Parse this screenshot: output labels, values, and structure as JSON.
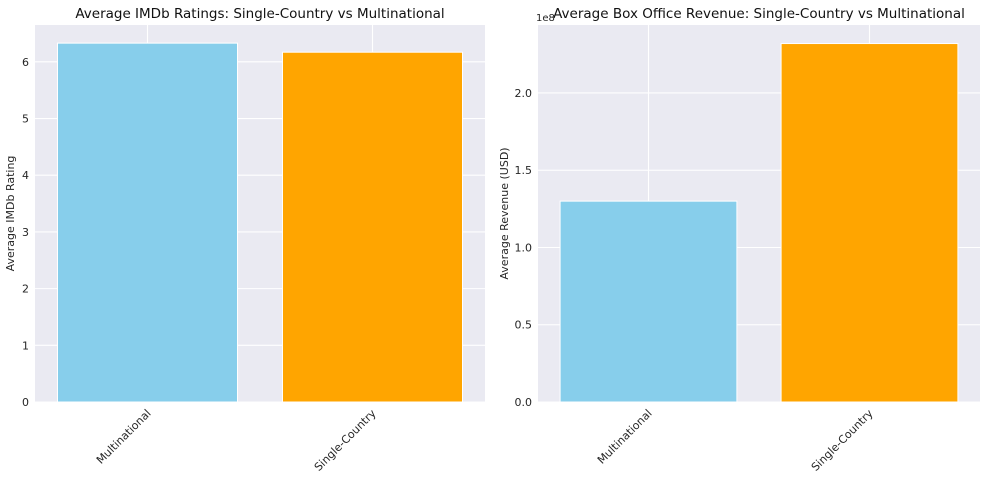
{
  "chart_data": [
    {
      "type": "bar",
      "title": "Average IMDb Ratings: Single-Country vs Multinational",
      "xlabel": "",
      "ylabel": "Average IMDb Rating",
      "categories": [
        "Multinational",
        "Single-Country"
      ],
      "values": [
        6.33,
        6.17
      ],
      "colors": [
        "#87ceeb",
        "#ffa500"
      ],
      "ylim": [
        0,
        6.65
      ],
      "yticks": [
        0,
        1,
        2,
        3,
        4,
        5,
        6
      ],
      "ytick_labels": [
        "0",
        "1",
        "2",
        "3",
        "4",
        "5",
        "6"
      ],
      "offset_text": "",
      "grid": true,
      "background": "#eaeaf2",
      "xtick_rotation": 45
    },
    {
      "type": "bar",
      "title": "Average Box Office Revenue: Single-Country vs Multinational",
      "xlabel": "",
      "ylabel": "Average Revenue (USD)",
      "categories": [
        "Multinational",
        "Single-Country"
      ],
      "values": [
        130000000,
        232000000
      ],
      "colors": [
        "#87ceeb",
        "#ffa500"
      ],
      "ylim": [
        0,
        244000000
      ],
      "yticks": [
        0,
        50000000,
        100000000,
        150000000,
        200000000
      ],
      "ytick_labels": [
        "0.0",
        "0.5",
        "1.0",
        "1.5",
        "2.0"
      ],
      "offset_text": "1e8",
      "grid": true,
      "background": "#eaeaf2",
      "xtick_rotation": 45
    }
  ]
}
